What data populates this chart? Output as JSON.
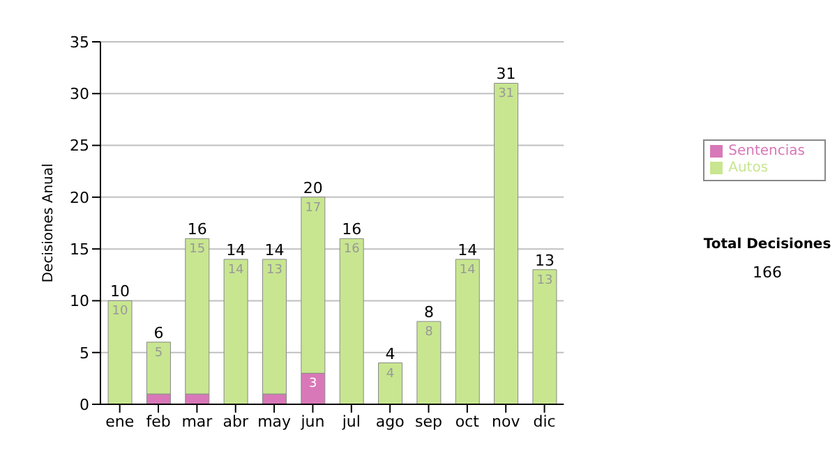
{
  "chart_data": {
    "type": "bar",
    "stacked": true,
    "ylabel": "Decisiones Anual",
    "categories": [
      "ene",
      "feb",
      "mar",
      "abr",
      "may",
      "jun",
      "jul",
      "ago",
      "sep",
      "oct",
      "nov",
      "dic"
    ],
    "series": [
      {
        "name": "Sentencias",
        "color": "#d878b8",
        "values": [
          0,
          1,
          1,
          0,
          1,
          3,
          0,
          0,
          0,
          0,
          0,
          0
        ],
        "value_labels": [
          null,
          null,
          null,
          null,
          null,
          "3",
          null,
          null,
          null,
          null,
          null,
          null
        ]
      },
      {
        "name": "Autos",
        "color": "#c8e690",
        "values": [
          10,
          5,
          15,
          14,
          13,
          17,
          16,
          4,
          8,
          14,
          31,
          13
        ],
        "value_labels": [
          "10",
          "5",
          "15",
          "14",
          "13",
          "17",
          "16",
          "4",
          "8",
          "14",
          "31",
          "13"
        ]
      }
    ],
    "totals": [
      "10",
      "6",
      "16",
      "14",
      "14",
      "20",
      "16",
      "4",
      "8",
      "14",
      "31",
      "13"
    ],
    "ylim": [
      0,
      35
    ],
    "yticks": [
      0,
      5,
      10,
      15,
      20,
      25,
      30,
      35
    ],
    "grid": "y",
    "legend": "right",
    "annotations": [
      "Total Decisiones",
      "166"
    ]
  }
}
